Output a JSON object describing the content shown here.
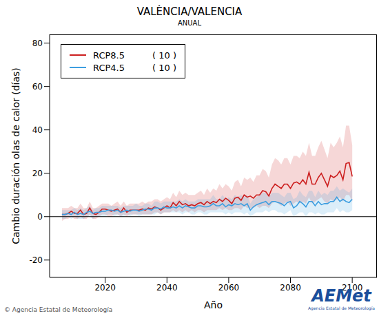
{
  "chart_data": {
    "type": "line",
    "title": "VALÈNCIA/VALENCIA",
    "subtitle": "ANUAL",
    "xlabel": "Año",
    "ylabel": "Cambio duración olas de calor (días)",
    "source": "© Agencia Estatal de Meteorología",
    "logo": "AEMet",
    "logo_caption": "Agencia Estatal de Meteorología",
    "legend": "upper left",
    "grid": false,
    "hline": 0,
    "xlim": [
      2002,
      2108
    ],
    "xticks": [
      2020,
      2040,
      2060,
      2080,
      2100
    ],
    "ylim": [
      -28,
      84
    ],
    "yticks": [
      -20,
      0,
      20,
      40,
      60,
      80
    ],
    "x": [
      2006,
      2007,
      2008,
      2009,
      2010,
      2011,
      2012,
      2013,
      2014,
      2015,
      2016,
      2017,
      2018,
      2019,
      2020,
      2021,
      2022,
      2023,
      2024,
      2025,
      2026,
      2027,
      2028,
      2029,
      2030,
      2031,
      2032,
      2033,
      2034,
      2035,
      2036,
      2037,
      2038,
      2039,
      2040,
      2041,
      2042,
      2043,
      2044,
      2045,
      2046,
      2047,
      2048,
      2049,
      2050,
      2051,
      2052,
      2053,
      2054,
      2055,
      2056,
      2057,
      2058,
      2059,
      2060,
      2061,
      2062,
      2063,
      2064,
      2065,
      2066,
      2067,
      2068,
      2069,
      2070,
      2071,
      2072,
      2073,
      2074,
      2075,
      2076,
      2077,
      2078,
      2079,
      2080,
      2081,
      2082,
      2083,
      2084,
      2085,
      2086,
      2087,
      2088,
      2089,
      2090,
      2091,
      2092,
      2093,
      2094,
      2095,
      2096,
      2097,
      2098,
      2099,
      2100
    ],
    "series": [
      {
        "name": "RCP8.5",
        "ensemble_label": "( 10 )",
        "color": "#cc1f1f",
        "values": [
          1,
          1,
          1.5,
          2.5,
          1.5,
          1.5,
          3,
          1,
          1.5,
          4,
          1.5,
          1,
          2,
          3.5,
          3.5,
          3,
          2.5,
          3,
          3.5,
          2,
          4,
          2,
          3,
          3,
          3,
          3,
          3.5,
          3,
          4,
          3.5,
          4.5,
          4,
          3,
          4,
          5,
          4,
          6.5,
          5,
          7,
          5.5,
          6,
          5,
          5.5,
          5,
          6,
          6.5,
          5.5,
          7,
          6,
          7,
          6.5,
          8,
          7,
          8.5,
          7.5,
          6,
          8.5,
          9,
          7.5,
          10,
          9,
          9.5,
          8.5,
          10,
          10,
          12,
          11.5,
          9.5,
          13,
          15,
          14,
          13,
          15,
          15,
          13,
          15.5,
          16,
          15,
          17,
          15,
          20.5,
          15,
          15,
          18,
          20,
          17,
          14,
          19,
          18,
          19,
          21,
          17,
          24.5,
          25,
          18.5
        ],
        "band_low": [
          -2,
          -1,
          -1,
          0,
          -1,
          -1,
          0,
          -1,
          -1,
          1,
          -1,
          -1,
          0,
          1,
          1,
          0,
          0,
          1,
          1,
          0,
          1,
          0,
          1,
          1,
          1,
          1,
          1,
          1,
          1,
          1,
          2,
          2,
          1,
          2,
          2,
          2,
          3,
          2,
          3,
          2,
          3,
          2,
          3,
          2,
          3,
          3,
          2,
          3,
          3,
          3,
          3,
          4,
          3,
          4,
          3,
          3,
          4,
          4,
          3,
          5,
          4,
          4,
          4,
          5,
          4,
          5,
          5,
          4,
          6,
          7,
          6,
          5,
          6,
          7,
          5,
          6,
          7,
          6,
          7,
          6,
          9,
          6,
          7,
          8,
          9,
          7,
          6,
          8,
          7,
          8,
          9,
          7,
          10,
          10,
          7
        ],
        "band_high": [
          4,
          4,
          4,
          5,
          4,
          4,
          6,
          4,
          4,
          7,
          4,
          4,
          5,
          6,
          6,
          6,
          5,
          6,
          7,
          5,
          7,
          5,
          6,
          6,
          6,
          6,
          7,
          6,
          7,
          7,
          8,
          8,
          7,
          8,
          9,
          8,
          11,
          9,
          12,
          10,
          11,
          10,
          10,
          10,
          11,
          12,
          10,
          13,
          11,
          13,
          12,
          15,
          13,
          15,
          14,
          12,
          16,
          17,
          14,
          18,
          17,
          18,
          16,
          19,
          19,
          22,
          21,
          18,
          24,
          27,
          26,
          24,
          27,
          27,
          24,
          28,
          28,
          27,
          30,
          28,
          34,
          28,
          28,
          32,
          35,
          31,
          27,
          34,
          32,
          34,
          37,
          32,
          42,
          42,
          33
        ]
      },
      {
        "name": "RCP4.5",
        "ensemble_label": "( 10 )",
        "color": "#3d9ee0",
        "values": [
          1,
          1,
          1.5,
          1,
          2,
          1,
          1.5,
          1,
          2,
          2.5,
          1.5,
          2,
          2,
          2.5,
          2.5,
          3,
          3,
          2.5,
          3,
          2,
          2.5,
          3,
          2.5,
          3,
          3,
          2.5,
          3,
          3.5,
          3.5,
          3,
          4,
          4,
          3.5,
          4.5,
          4,
          4,
          4.5,
          4,
          5,
          4,
          5,
          4.5,
          4,
          4,
          5,
          5,
          4.5,
          4.5,
          5,
          6,
          5,
          5,
          6,
          4.5,
          5.5,
          5,
          6,
          5.5,
          6,
          5,
          6,
          3,
          4.5,
          5.5,
          6,
          6.5,
          7,
          5.5,
          7,
          7,
          6.5,
          6,
          5,
          6.5,
          7,
          4,
          5,
          7,
          6,
          4.5,
          7,
          7,
          5,
          7,
          5.5,
          6,
          6,
          7,
          7,
          9,
          7,
          8,
          7,
          6.5,
          8
        ],
        "band_low": [
          -1,
          -1,
          0,
          -1,
          0,
          -1,
          -1,
          -1,
          0,
          0,
          -1,
          0,
          0,
          0,
          0,
          1,
          1,
          0,
          1,
          0,
          0,
          1,
          0,
          1,
          1,
          0,
          1,
          1,
          1,
          1,
          1,
          2,
          1,
          2,
          2,
          2,
          2,
          2,
          2,
          1,
          2,
          2,
          1,
          1,
          2,
          2,
          1,
          1,
          2,
          2,
          2,
          2,
          2,
          1,
          2,
          1,
          2,
          2,
          2,
          1,
          2,
          0,
          1,
          2,
          2,
          2,
          3,
          2,
          3,
          3,
          2,
          2,
          1,
          2,
          3,
          0,
          1,
          2,
          2,
          0,
          2,
          2,
          1,
          2,
          1,
          1,
          2,
          2,
          2,
          4,
          2,
          3,
          2,
          2,
          3
        ],
        "band_high": [
          3,
          3,
          3,
          3,
          4,
          3,
          4,
          3,
          4,
          5,
          3,
          4,
          4,
          5,
          5,
          5,
          5,
          5,
          5,
          4,
          5,
          5,
          5,
          5,
          6,
          5,
          5,
          6,
          6,
          5,
          7,
          7,
          6,
          7,
          7,
          7,
          7,
          7,
          8,
          7,
          8,
          7,
          7,
          7,
          8,
          8,
          8,
          8,
          8,
          10,
          8,
          8,
          10,
          8,
          9,
          8,
          10,
          9,
          10,
          9,
          10,
          6,
          8,
          9,
          10,
          11,
          11,
          9,
          11,
          11,
          11,
          10,
          9,
          11,
          11,
          8,
          9,
          12,
          10,
          9,
          12,
          12,
          9,
          12,
          10,
          11,
          10,
          12,
          12,
          14,
          12,
          13,
          12,
          11,
          13
        ]
      }
    ]
  }
}
